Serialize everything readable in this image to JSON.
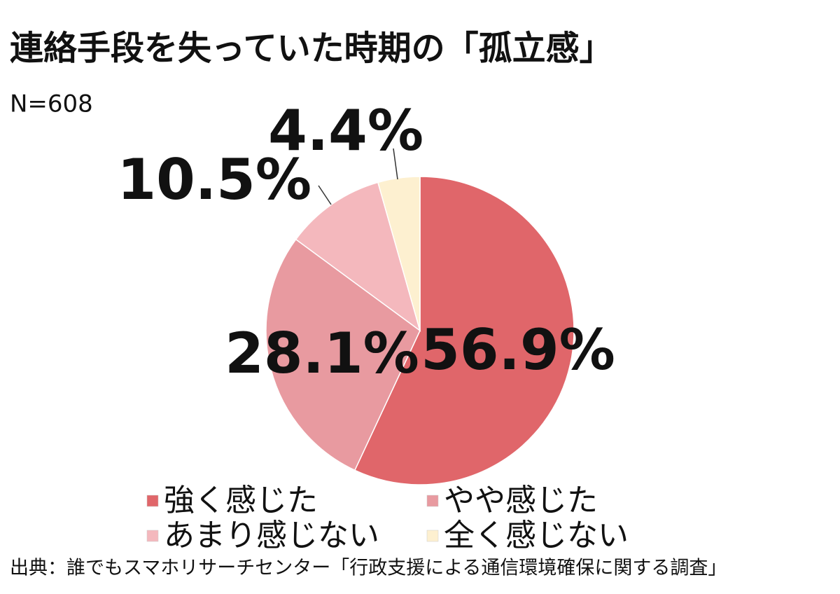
{
  "chart_data": {
    "type": "pie",
    "title": "連絡手段を失っていた時期の「孤立感」",
    "subtitle": "N=608",
    "categories": [
      "強く感じた",
      "やや感じた",
      "あまり感じない",
      "全く感じない"
    ],
    "values": [
      56.9,
      28.1,
      10.5,
      4.4
    ],
    "value_labels": [
      "56.9%",
      "28.1%",
      "10.5%",
      "4.4%"
    ],
    "colors": [
      "#e0666a",
      "#e89aa0",
      "#f4b8bd",
      "#fdf0d0"
    ],
    "source": "出典：誰でもスマホリサーチセンター「行政支援による通信環境確保に関する調査」"
  }
}
